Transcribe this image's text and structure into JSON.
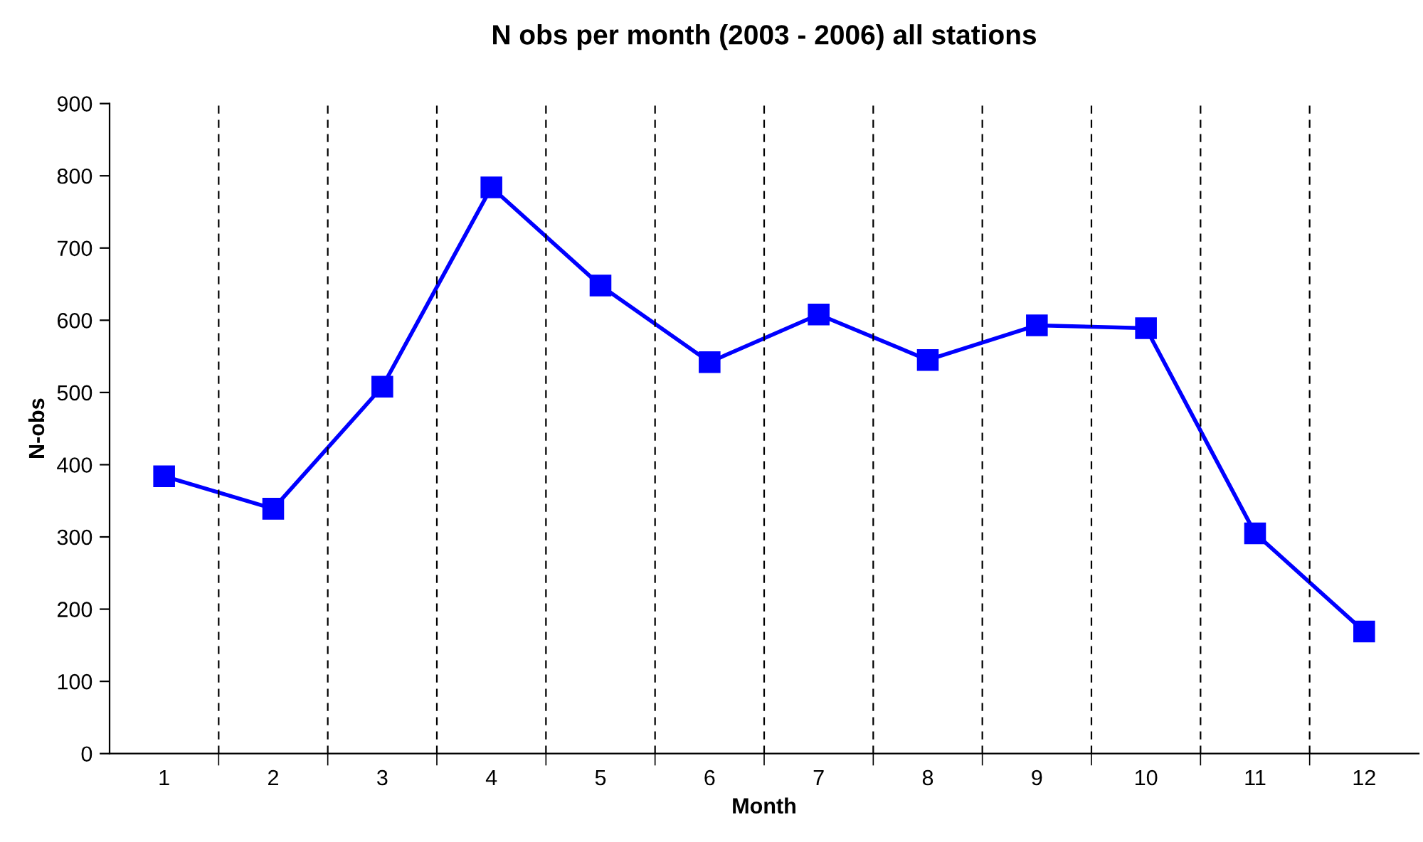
{
  "chart_data": {
    "type": "line",
    "title": "N obs per month (2003 - 2006) all stations",
    "xlabel": "Month",
    "ylabel": "N-obs",
    "categories": [
      "1",
      "2",
      "3",
      "4",
      "5",
      "6",
      "7",
      "8",
      "9",
      "10",
      "11",
      "12"
    ],
    "series": [
      {
        "color": "#0000ff",
        "values": [
          384,
          339,
          508,
          784,
          648,
          542,
          608,
          545,
          593,
          589,
          305,
          169
        ]
      }
    ],
    "ylim": [
      0,
      900
    ],
    "yticks": [
      0,
      100,
      200,
      300,
      400,
      500,
      600,
      700,
      800,
      900
    ],
    "grid": "x",
    "legend": false,
    "marker": "square",
    "line_style": "solid"
  }
}
